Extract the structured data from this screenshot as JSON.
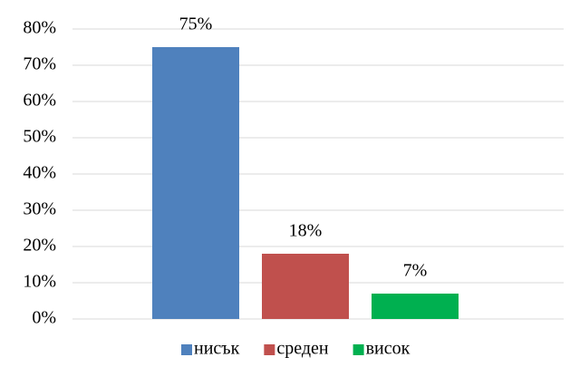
{
  "chart_data": {
    "type": "bar",
    "categories": [
      null
    ],
    "series": [
      {
        "name": "нисък",
        "color": "#4f81bd",
        "values": [
          75
        ],
        "value_labels": [
          "75%"
        ]
      },
      {
        "name": "среден",
        "color": "#c0504d",
        "values": [
          18
        ],
        "value_labels": [
          "18%"
        ]
      },
      {
        "name": "висок",
        "color": "#00b050",
        "values": [
          7
        ],
        "value_labels": [
          "7%"
        ]
      }
    ],
    "ylim": [
      0,
      80
    ],
    "yticks": [
      {
        "value": 0,
        "label": "0%"
      },
      {
        "value": 10,
        "label": "10%"
      },
      {
        "value": 20,
        "label": "20%"
      },
      {
        "value": 30,
        "label": "30%"
      },
      {
        "value": 40,
        "label": "40%"
      },
      {
        "value": 50,
        "label": "50%"
      },
      {
        "value": 60,
        "label": "60%"
      },
      {
        "value": 70,
        "label": "70%"
      },
      {
        "value": 80,
        "label": "80%"
      }
    ],
    "grid": true,
    "legend": "bottom"
  }
}
